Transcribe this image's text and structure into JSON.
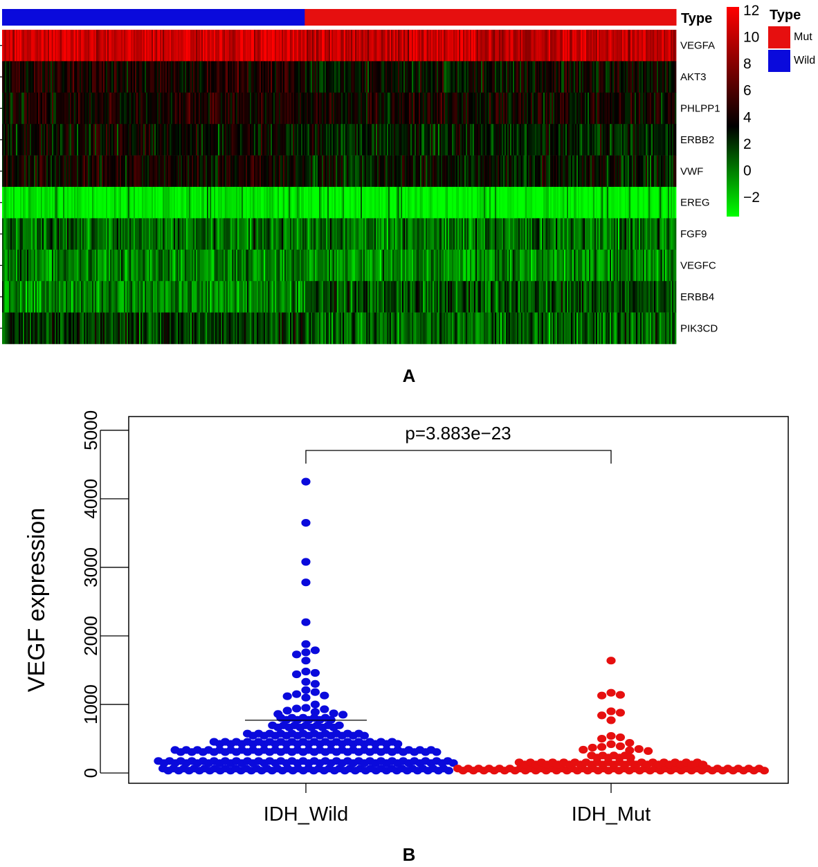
{
  "panel_a_label": "A",
  "panel_b_label": "B",
  "chart_data": [
    {
      "type": "heatmap",
      "title": "",
      "type_bar_label": "Type",
      "column_groups": [
        {
          "name": "Wild",
          "color": "#0a0adc",
          "fraction": 0.449
        },
        {
          "name": "Mut",
          "color": "#e60f0f",
          "fraction": 0.551
        }
      ],
      "genes": [
        "VEGFA",
        "AKT3",
        "PHLPP1",
        "ERBB2",
        "VWF",
        "EREG",
        "FGF9",
        "VEGFC",
        "ERBB4",
        "PIK3CD"
      ],
      "mean_expression": {
        "Wild": [
          10.5,
          4.8,
          4.6,
          4.0,
          4.4,
          -1.5,
          1.6,
          1.2,
          0.9,
          2.8
        ],
        "Mut": [
          10.0,
          4.0,
          4.4,
          3.2,
          3.6,
          -1.8,
          1.4,
          0.8,
          2.2,
          1.6
        ]
      },
      "colorbar": {
        "min": -2,
        "max": 12,
        "ticks": [
          12,
          10,
          8,
          6,
          4,
          2,
          0,
          -2
        ],
        "tick_labels": [
          "12",
          "10",
          "8",
          "6",
          "4",
          "2",
          "0",
          "−2"
        ],
        "colors": [
          "#00ff00",
          "#000000",
          "#ff0000"
        ]
      },
      "legend": {
        "title": "Type",
        "entries": [
          {
            "label": "Mut",
            "color": "#e60f0f"
          },
          {
            "label": "Wild",
            "color": "#0a0adc"
          }
        ]
      }
    },
    {
      "type": "scatter",
      "subtype": "beeswarm",
      "title": "",
      "xlabel": "",
      "ylabel": "VEGF expression",
      "ylim": [
        -150,
        5200
      ],
      "yticks": [
        0,
        1000,
        2000,
        3000,
        4000,
        5000
      ],
      "ytick_labels": [
        "0",
        "1000",
        "2000",
        "3000",
        "4000",
        "5000"
      ],
      "categories": [
        "IDH_Wild",
        "IDH_Mut"
      ],
      "annotation": "p=3.883e−23",
      "series": [
        {
          "name": "IDH_Wild",
          "color": "#0a0adc",
          "median_line": 770,
          "outliers": [
            4250,
            3650,
            3080,
            2780,
            2200,
            1880,
            1790,
            1760,
            1730,
            1640,
            1480,
            1460,
            1440,
            1330,
            1300,
            1210,
            1180,
            1150,
            1130,
            1120,
            1100,
            1000,
            950,
            940,
            930,
            910,
            890,
            870,
            860,
            850
          ],
          "bins": [
            {
              "y": 50,
              "n": 56
            },
            {
              "y": 160,
              "n": 54
            },
            {
              "y": 320,
              "n": 48
            },
            {
              "y": 440,
              "n": 34
            },
            {
              "y": 560,
              "n": 22
            },
            {
              "y": 680,
              "n": 13
            },
            {
              "y": 790,
              "n": 10
            }
          ]
        },
        {
          "name": "IDH_Mut",
          "color": "#e60f0f",
          "outliers": [
            1640,
            1170,
            1140,
            1130,
            900,
            880,
            840,
            770,
            540,
            520,
            500,
            440,
            420,
            390,
            380,
            370,
            350,
            340,
            330,
            320
          ],
          "bins": [
            {
              "y": 50,
              "n": 60
            },
            {
              "y": 140,
              "n": 34
            },
            {
              "y": 240,
              "n": 8
            }
          ]
        }
      ]
    }
  ]
}
